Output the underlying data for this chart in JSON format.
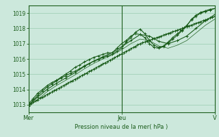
{
  "title": "",
  "xlabel": "Pression niveau de la mer( hPa )",
  "bg_color": "#cce8dc",
  "plot_bg_color": "#cce8dc",
  "grid_color": "#99ccb0",
  "line_color": "#1a5c1a",
  "ylim": [
    1012.5,
    1019.5
  ],
  "xlim": [
    0,
    80
  ],
  "yticks": [
    1013,
    1014,
    1015,
    1016,
    1017,
    1018,
    1019
  ],
  "xtick_positions": [
    0,
    40,
    80
  ],
  "xtick_labels": [
    "Mer",
    "Jeu",
    "V"
  ],
  "marker": "+",
  "markersize": 3,
  "linewidth": 0.8,
  "line1_x": [
    0,
    1,
    2,
    3,
    4,
    5,
    6,
    7,
    8,
    9,
    10,
    11,
    12,
    13,
    14,
    15,
    16,
    17,
    18,
    19,
    20,
    21,
    22,
    23,
    24,
    25,
    26,
    27,
    28,
    29,
    30,
    31,
    32,
    33,
    34,
    35,
    36,
    37,
    38,
    39,
    40,
    41,
    42,
    43,
    44,
    45,
    46,
    47,
    48,
    49,
    50,
    51,
    52,
    53,
    54,
    55,
    56,
    57,
    58,
    59,
    60,
    61,
    62,
    63,
    64,
    65,
    66,
    67,
    68,
    69,
    70,
    71,
    72,
    73,
    74,
    75,
    76,
    77,
    78,
    79,
    80
  ],
  "line1_y": [
    1013.0,
    1013.08,
    1013.17,
    1013.25,
    1013.33,
    1013.42,
    1013.5,
    1013.58,
    1013.67,
    1013.75,
    1013.83,
    1013.92,
    1014.0,
    1014.08,
    1014.17,
    1014.25,
    1014.33,
    1014.42,
    1014.5,
    1014.58,
    1014.67,
    1014.75,
    1014.83,
    1014.92,
    1015.0,
    1015.08,
    1015.17,
    1015.25,
    1015.33,
    1015.42,
    1015.5,
    1015.58,
    1015.67,
    1015.75,
    1015.83,
    1015.92,
    1016.0,
    1016.08,
    1016.17,
    1016.25,
    1016.33,
    1016.42,
    1016.5,
    1016.58,
    1016.67,
    1016.75,
    1016.83,
    1016.92,
    1017.0,
    1017.06,
    1017.11,
    1017.17,
    1017.22,
    1017.28,
    1017.33,
    1017.39,
    1017.44,
    1017.5,
    1017.56,
    1017.61,
    1017.67,
    1017.72,
    1017.78,
    1017.83,
    1017.89,
    1017.94,
    1018.0,
    1018.06,
    1018.11,
    1018.17,
    1018.22,
    1018.28,
    1018.33,
    1018.39,
    1018.44,
    1018.5,
    1018.56,
    1018.61,
    1018.67,
    1018.72,
    1018.78
  ],
  "line2_x": [
    0,
    2,
    4,
    6,
    8,
    10,
    12,
    14,
    16,
    18,
    20,
    22,
    24,
    26,
    28,
    30,
    32,
    34,
    36,
    38,
    40,
    42,
    44,
    46,
    48,
    50,
    52,
    54,
    56,
    58,
    60,
    62,
    64,
    66,
    68,
    70,
    72,
    74,
    76,
    78,
    80
  ],
  "line2_y": [
    1012.9,
    1013.3,
    1013.6,
    1013.9,
    1014.15,
    1014.35,
    1014.55,
    1014.75,
    1014.9,
    1015.05,
    1015.2,
    1015.35,
    1015.55,
    1015.7,
    1015.85,
    1015.95,
    1016.1,
    1016.2,
    1016.3,
    1016.5,
    1016.7,
    1017.1,
    1017.4,
    1017.75,
    1017.95,
    1017.65,
    1017.2,
    1016.9,
    1016.75,
    1016.85,
    1017.1,
    1017.4,
    1017.65,
    1017.9,
    1018.2,
    1018.55,
    1018.8,
    1019.0,
    1019.1,
    1019.2,
    1019.3
  ],
  "line3_x": [
    0,
    2,
    4,
    6,
    8,
    10,
    12,
    14,
    16,
    18,
    20,
    22,
    24,
    26,
    28,
    30,
    32,
    34,
    36,
    38,
    40,
    42,
    44,
    46,
    48,
    50,
    52,
    54,
    56,
    58,
    60,
    62,
    64,
    66,
    68,
    70,
    72,
    74,
    76,
    78,
    80
  ],
  "line3_y": [
    1013.05,
    1013.4,
    1013.75,
    1014.0,
    1014.25,
    1014.45,
    1014.6,
    1014.8,
    1015.0,
    1015.2,
    1015.45,
    1015.6,
    1015.8,
    1015.95,
    1016.1,
    1016.2,
    1016.3,
    1016.4,
    1016.4,
    1016.7,
    1017.0,
    1017.2,
    1017.5,
    1017.65,
    1017.6,
    1017.4,
    1017.0,
    1016.75,
    1016.7,
    1016.8,
    1017.05,
    1017.3,
    1017.55,
    1017.85,
    1018.15,
    1018.6,
    1018.85,
    1019.05,
    1019.15,
    1019.25,
    1019.3
  ],
  "line4_x": [
    0,
    4,
    8,
    12,
    16,
    20,
    24,
    28,
    32,
    36,
    40,
    44,
    48,
    52,
    56,
    60,
    64,
    68,
    72,
    76,
    80
  ],
  "line4_y": [
    1013.0,
    1013.5,
    1014.0,
    1014.4,
    1014.75,
    1015.1,
    1015.5,
    1015.85,
    1016.15,
    1016.4,
    1016.8,
    1017.2,
    1017.6,
    1017.5,
    1017.15,
    1017.0,
    1017.2,
    1017.5,
    1018.0,
    1018.5,
    1018.9
  ],
  "line5_x": [
    0,
    4,
    8,
    12,
    16,
    20,
    24,
    28,
    32,
    36,
    40,
    44,
    48,
    52,
    56,
    60,
    64,
    68,
    72,
    76,
    80
  ],
  "line5_y": [
    1012.85,
    1013.35,
    1013.85,
    1014.25,
    1014.6,
    1014.95,
    1015.35,
    1015.7,
    1016.0,
    1016.25,
    1016.6,
    1017.0,
    1017.3,
    1017.2,
    1016.85,
    1016.7,
    1016.9,
    1017.2,
    1017.7,
    1018.2,
    1018.6
  ]
}
